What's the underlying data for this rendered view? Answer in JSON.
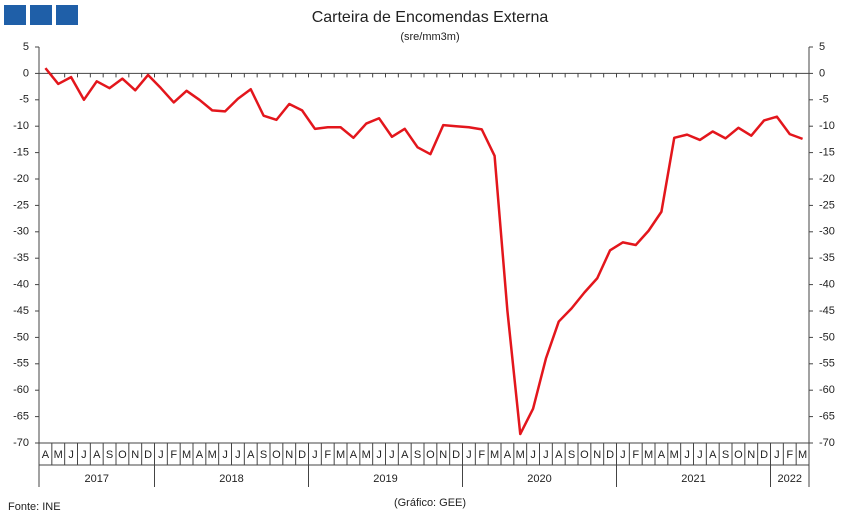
{
  "chart_data": {
    "type": "line",
    "title": "Carteira de Encomendas Externa",
    "subtitle": "(sre/mm3m)",
    "source": "Fonte: INE",
    "credit": "(Gráfico: GEE)",
    "categories": [
      "A",
      "M",
      "J",
      "J",
      "A",
      "S",
      "O",
      "N",
      "D",
      "J",
      "F",
      "M",
      "A",
      "M",
      "J",
      "J",
      "A",
      "S",
      "O",
      "N",
      "D",
      "J",
      "F",
      "M",
      "A",
      "M",
      "J",
      "J",
      "A",
      "S",
      "O",
      "N",
      "D",
      "J",
      "F",
      "M",
      "A",
      "M",
      "J",
      "J",
      "A",
      "S",
      "O",
      "N",
      "D",
      "J",
      "F",
      "M",
      "A",
      "M",
      "J",
      "J",
      "A",
      "S",
      "O",
      "N",
      "D",
      "J",
      "F",
      "M"
    ],
    "years": [
      "2017",
      "2018",
      "2019",
      "2020",
      "2021",
      "2022"
    ],
    "series": [
      {
        "color": "#e3161c",
        "values": [
          1,
          -2,
          -0.7,
          -5,
          -1.5,
          -2.8,
          -1,
          -3.2,
          -0.3,
          -2.8,
          -5.5,
          -3.3,
          -5,
          -7,
          -7.2,
          -4.8,
          -3,
          -8,
          -8.8,
          -5.8,
          -7,
          -10.5,
          -10.2,
          -10.2,
          -12.2,
          -9.5,
          -8.5,
          -12,
          -10.5,
          -14,
          -15.3,
          -9.8,
          -10,
          -10.2,
          -10.6,
          -15.6,
          -45,
          -68.3,
          -63.5,
          -54,
          -47,
          -44.5,
          -41.5,
          -38.8,
          -33.5,
          -32,
          -32.5,
          -29.8,
          -26.2,
          -12.2,
          -11.6,
          -12.6,
          -11,
          -12.3,
          -10.3,
          -11.8,
          -8.9,
          -8.2,
          -11.5,
          -12.4
        ]
      }
    ],
    "ylim": [
      -70,
      5
    ],
    "yticks": [
      5,
      0,
      -5,
      -10,
      -15,
      -20,
      -25,
      -30,
      -35,
      -40,
      -45,
      -50,
      -55,
      -60,
      -65,
      -70
    ],
    "y2lim": [
      -70,
      5
    ],
    "y2ticks": [
      5,
      0,
      -5,
      -10,
      -15,
      -20,
      -25,
      -30,
      -35,
      -40,
      -45,
      -50,
      -55,
      -60,
      -65,
      -70
    ]
  }
}
